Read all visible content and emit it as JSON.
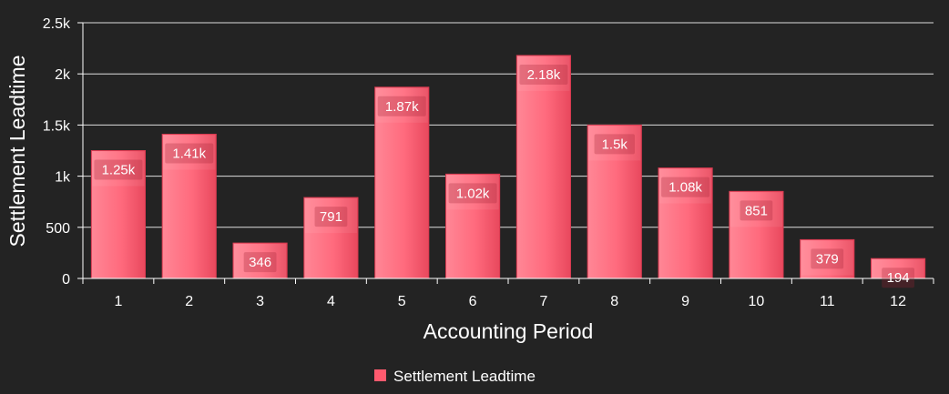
{
  "chart_data": {
    "type": "bar",
    "xlabel": "Accounting Period",
    "ylabel": "Settlement Leadtime",
    "categories": [
      "1",
      "2",
      "3",
      "4",
      "5",
      "6",
      "7",
      "8",
      "9",
      "10",
      "11",
      "12"
    ],
    "series": [
      {
        "name": "Settlement Leadtime",
        "values": [
          1250,
          1410,
          346,
          791,
          1870,
          1020,
          2180,
          1500,
          1080,
          851,
          379,
          194
        ],
        "data_labels": [
          "1.25k",
          "1.41k",
          "346",
          "791",
          "1.87k",
          "1.02k",
          "2.18k",
          "1.5k",
          "1.08k",
          "851",
          "379",
          "194"
        ],
        "color": "#ff5a6e"
      }
    ],
    "ylim": [
      0,
      2500
    ],
    "yticks": [
      0,
      500,
      1000,
      1500,
      2000,
      2500
    ],
    "ytick_labels": [
      "0",
      "500",
      "1k",
      "1.5k",
      "2k",
      "2.5k"
    ],
    "grid": true,
    "legend_position": "bottom-center",
    "background": "#232323",
    "grid_color": "#ffffff"
  }
}
